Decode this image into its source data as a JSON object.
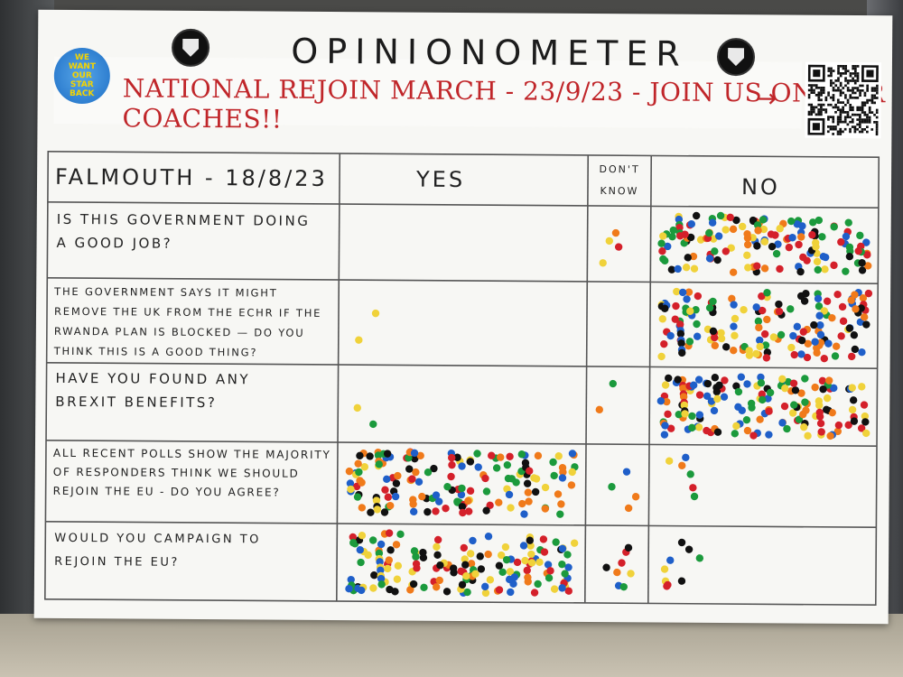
{
  "board": {
    "title": "OPINIONOMETER",
    "banner": "NATIONAL REJOIN MARCH - 23/9/23 - JOIN US ON OUR COACHES!!",
    "arrow": "→",
    "badge_text": "WE WANT OUR STAR BACK",
    "location_date": "FALMOUTH - 18/8/23",
    "columns": [
      "YES",
      "DON'T KNOW",
      "NO"
    ],
    "questions": [
      "IS THIS GOVERNMENT DOING A GOOD JOB?",
      "THE GOVERNMENT SAYS IT MIGHT REMOVE THE UK FROM THE ECHR IF THE RWANDA PLAN IS BLOCKED — DO YOU THINK THIS IS A GOOD THING?",
      "HAVE YOU FOUND ANY BREXIT BENEFITS?",
      "ALL RECENT POLLS SHOW THE MAJORITY OF RESPONDERS THINK WE SHOULD REJOIN THE EU - DO YOU AGREE?",
      "WOULD YOU CAMPAIGN TO REJOIN THE EU?"
    ]
  },
  "colors": {
    "banner_red": "#c0262a",
    "dot_colors": [
      "#d4202a",
      "#1f5fc9",
      "#1b9a3c",
      "#f0d23a",
      "#f07a1a",
      "#111111"
    ]
  },
  "dot_density": {
    "rows": [
      {
        "yes": 0,
        "dont_know": 4,
        "no": 140
      },
      {
        "yes": 2,
        "dont_know": 0,
        "no": 150
      },
      {
        "yes": 2,
        "dont_know": 2,
        "no": 150
      },
      {
        "yes": 150,
        "dont_know": 4,
        "no": 6
      },
      {
        "yes": 150,
        "dont_know": 8,
        "no": 9
      }
    ]
  }
}
